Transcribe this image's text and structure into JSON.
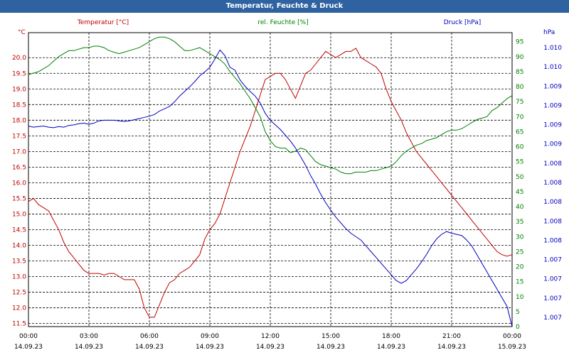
{
  "window": {
    "title": "Temperatur, Feuchte & Druck"
  },
  "chart_data": {
    "type": "line",
    "title": "Temperatur, Feuchte & Druck",
    "colors": {
      "temperature": "#c00000",
      "humidity": "#008000",
      "pressure": "#0000c0",
      "grid": "#000000"
    },
    "grid": true,
    "x_ticks": [
      {
        "time": "00:00",
        "date": "14.09.23"
      },
      {
        "time": "03:00",
        "date": "14.09.23"
      },
      {
        "time": "06:00",
        "date": "14.09.23"
      },
      {
        "time": "09:00",
        "date": "14.09.23"
      },
      {
        "time": "12:00",
        "date": "14.09.23"
      },
      {
        "time": "15:00",
        "date": "14.09.23"
      },
      {
        "time": "18:00",
        "date": "14.09.23"
      },
      {
        "time": "21:00",
        "date": "14.09.23"
      },
      {
        "time": "00:00",
        "date": "15.09.23"
      }
    ],
    "x_range_hours": [
      0,
      24
    ],
    "axes": {
      "temperature": {
        "label": "Temperatur [°C]",
        "unit": "°C",
        "range": [
          11.4,
          20.8
        ],
        "ticks": [
          "20.0",
          "19.5",
          "19.0",
          "18.5",
          "18.0",
          "17.5",
          "17.0",
          "16.5",
          "16.0",
          "15.5",
          "15.0",
          "14.5",
          "14.0",
          "13.5",
          "13.0",
          "12.5",
          "12.0",
          "11.5"
        ]
      },
      "humidity": {
        "label": "rel. Feuchte [%]",
        "unit": "%",
        "range": [
          0,
          98
        ],
        "ticks": [
          "95",
          "90",
          "85",
          "80",
          "75",
          "70",
          "65",
          "60",
          "55",
          "50",
          "45",
          "40",
          "35",
          "30",
          "25",
          "20",
          "15",
          "10",
          "5",
          "0"
        ]
      },
      "pressure": {
        "label": "Druck [hPa]",
        "unit": "hPa",
        "ticks": [
          "1.010",
          "1.010",
          "1.009",
          "1.009",
          "1.009",
          "1.009",
          "1.008",
          "1.008",
          "1.008",
          "1.008",
          "1.008",
          "1.007",
          "1.007",
          "1.007",
          "1.007"
        ]
      }
    },
    "series": [
      {
        "name": "Temperatur [°C]",
        "axis": "temperature",
        "color": "#c00000",
        "x": [
          0,
          0.25,
          0.5,
          0.75,
          1,
          1.25,
          1.5,
          1.75,
          2,
          2.25,
          2.5,
          2.75,
          3,
          3.25,
          3.5,
          3.75,
          4,
          4.25,
          4.5,
          4.75,
          5,
          5.25,
          5.5,
          5.75,
          6,
          6.25,
          6.5,
          6.75,
          7,
          7.25,
          7.5,
          7.75,
          8,
          8.25,
          8.5,
          8.75,
          9,
          9.25,
          9.5,
          9.75,
          10,
          10.25,
          10.5,
          10.75,
          11,
          11.25,
          11.5,
          11.75,
          12,
          12.25,
          12.5,
          12.75,
          13,
          13.25,
          13.5,
          13.75,
          14,
          14.25,
          14.5,
          14.75,
          15,
          15.25,
          15.5,
          15.75,
          16,
          16.25,
          16.5,
          16.75,
          17,
          17.25,
          17.5,
          17.75,
          18,
          18.25,
          18.5,
          18.75,
          19,
          19.25,
          19.5,
          19.75,
          20,
          20.25,
          20.5,
          20.75,
          21,
          21.25,
          21.5,
          21.75,
          22,
          22.25,
          22.5,
          22.75,
          23,
          23.25,
          23.5,
          23.75,
          24
        ],
        "values": [
          15.4,
          15.5,
          15.3,
          15.2,
          15.1,
          14.8,
          14.5,
          14.1,
          13.8,
          13.6,
          13.4,
          13.2,
          13.1,
          13.1,
          13.1,
          13.05,
          13.1,
          13.1,
          13.0,
          12.9,
          12.9,
          12.9,
          12.6,
          12.0,
          11.7,
          11.7,
          12.1,
          12.5,
          12.8,
          12.9,
          13.1,
          13.2,
          13.3,
          13.5,
          13.7,
          14.2,
          14.5,
          14.7,
          15.0,
          15.5,
          16.0,
          16.5,
          17.0,
          17.4,
          17.8,
          18.3,
          18.8,
          19.3,
          19.4,
          19.5,
          19.5,
          19.3,
          19.0,
          18.7,
          19.1,
          19.5,
          19.6,
          19.8,
          20.0,
          20.2,
          20.1,
          20.0,
          20.1,
          20.2,
          20.2,
          20.3,
          20.0,
          19.9,
          19.8,
          19.7,
          19.5,
          19.0,
          18.6,
          18.3,
          18.0,
          17.6,
          17.3,
          17.0,
          16.8,
          16.6,
          16.4,
          16.2,
          16.0,
          15.8,
          15.6,
          15.4,
          15.2,
          15.0,
          14.8,
          14.6,
          14.4,
          14.2,
          14.0,
          13.8,
          13.7,
          13.65,
          13.7
        ]
      },
      {
        "name": "rel. Feuchte [%]",
        "axis": "humidity",
        "color": "#008000",
        "x": [
          0,
          0.25,
          0.5,
          0.75,
          1,
          1.25,
          1.5,
          1.75,
          2,
          2.25,
          2.5,
          2.75,
          3,
          3.25,
          3.5,
          3.75,
          4,
          4.25,
          4.5,
          4.75,
          5,
          5.25,
          5.5,
          5.75,
          6,
          6.25,
          6.5,
          6.75,
          7,
          7.25,
          7.5,
          7.75,
          8,
          8.25,
          8.5,
          8.75,
          9,
          9.25,
          9.5,
          9.75,
          10,
          10.25,
          10.5,
          10.75,
          11,
          11.25,
          11.5,
          11.75,
          12,
          12.25,
          12.5,
          12.75,
          13,
          13.25,
          13.5,
          13.75,
          14,
          14.25,
          14.5,
          14.75,
          15,
          15.25,
          15.5,
          15.75,
          16,
          16.25,
          16.5,
          16.75,
          17,
          17.25,
          17.5,
          17.75,
          18,
          18.25,
          18.5,
          18.75,
          19,
          19.25,
          19.5,
          19.75,
          20,
          20.25,
          20.5,
          20.75,
          21,
          21.25,
          21.5,
          21.75,
          22,
          22.25,
          22.5,
          22.75,
          23,
          23.25,
          23.5,
          23.75,
          24
        ],
        "values": [
          84,
          84.5,
          85,
          86,
          87,
          88.5,
          90,
          91,
          92,
          92,
          92.5,
          93,
          93,
          93.5,
          93.5,
          93,
          92,
          91.5,
          91,
          91.5,
          92,
          92.5,
          93,
          94,
          95,
          96,
          96.5,
          96.5,
          96,
          95,
          93.5,
          92,
          92,
          92.5,
          93,
          92,
          91,
          90,
          89,
          87.5,
          85,
          83,
          81,
          78.5,
          76,
          73,
          70,
          65,
          62,
          60,
          59.5,
          59.5,
          58,
          58.5,
          59.5,
          59,
          57,
          55,
          54,
          53.5,
          53,
          52.5,
          51.5,
          51,
          51,
          51.5,
          51.5,
          51.5,
          52,
          52,
          52.5,
          53,
          53.5,
          55,
          57,
          58.5,
          59.5,
          60.5,
          61,
          62,
          62.5,
          63,
          64,
          65,
          65.5,
          65.5,
          66,
          67,
          68,
          69,
          69.5,
          70,
          72,
          73,
          74.5,
          76,
          77
        ]
      },
      {
        "name": "Druck [hPa]",
        "axis": "pressure",
        "color": "#0000c0",
        "x": [
          0,
          0.25,
          0.5,
          0.75,
          1,
          1.25,
          1.5,
          1.75,
          2,
          2.25,
          2.5,
          2.75,
          3,
          3.25,
          3.5,
          3.75,
          4,
          4.25,
          4.5,
          4.75,
          5,
          5.25,
          5.5,
          5.75,
          6,
          6.25,
          6.5,
          6.75,
          7,
          7.25,
          7.5,
          7.75,
          8,
          8.25,
          8.5,
          8.75,
          9,
          9.25,
          9.5,
          9.75,
          10,
          10.25,
          10.5,
          10.75,
          11,
          11.25,
          11.5,
          11.75,
          12,
          12.25,
          12.5,
          12.75,
          13,
          13.25,
          13.5,
          13.75,
          14,
          14.25,
          14.5,
          14.75,
          15,
          15.25,
          15.5,
          15.75,
          16,
          16.25,
          16.5,
          16.75,
          17,
          17.25,
          17.5,
          17.75,
          18,
          18.25,
          18.5,
          18.75,
          19,
          19.25,
          19.5,
          19.75,
          20,
          20.25,
          20.5,
          20.75,
          21,
          21.25,
          21.5,
          21.75,
          22,
          22.25,
          22.5,
          22.75,
          23,
          23.25,
          23.5,
          23.75,
          24
        ],
        "values": [
          1.00828,
          1.00826,
          1.00827,
          1.00828,
          1.00826,
          1.00825,
          1.00827,
          1.00826,
          1.00829,
          1.0083,
          1.00832,
          1.00833,
          1.00831,
          1.00833,
          1.00837,
          1.00838,
          1.00838,
          1.00838,
          1.00837,
          1.00836,
          1.00837,
          1.00839,
          1.00841,
          1.00843,
          1.00845,
          1.00848,
          1.00854,
          1.00858,
          1.00862,
          1.0087,
          1.0088,
          1.00888,
          1.00896,
          1.00905,
          1.00915,
          1.00922,
          1.0093,
          1.00944,
          1.0096,
          1.0095,
          1.0093,
          1.00925,
          1.00908,
          1.00897,
          1.00888,
          1.0088,
          1.00868,
          1.0085,
          1.00838,
          1.0083,
          1.00822,
          1.00812,
          1.00802,
          1.0079,
          1.00775,
          1.0076,
          1.00742,
          1.00727,
          1.0071,
          1.00695,
          1.00682,
          1.0067,
          1.0066,
          1.0065,
          1.00642,
          1.00636,
          1.0063,
          1.0062,
          1.0061,
          1.006,
          1.0059,
          1.0058,
          1.0057,
          1.0056,
          1.00555,
          1.0056,
          1.0057,
          1.0058,
          1.00592,
          1.00605,
          1.0062,
          1.00632,
          1.0064,
          1.00645,
          1.00642,
          1.0064,
          1.00638,
          1.0063,
          1.0062,
          1.00605,
          1.0059,
          1.00575,
          1.0056,
          1.00545,
          1.0053,
          1.00515,
          1.0048
        ]
      }
    ]
  }
}
